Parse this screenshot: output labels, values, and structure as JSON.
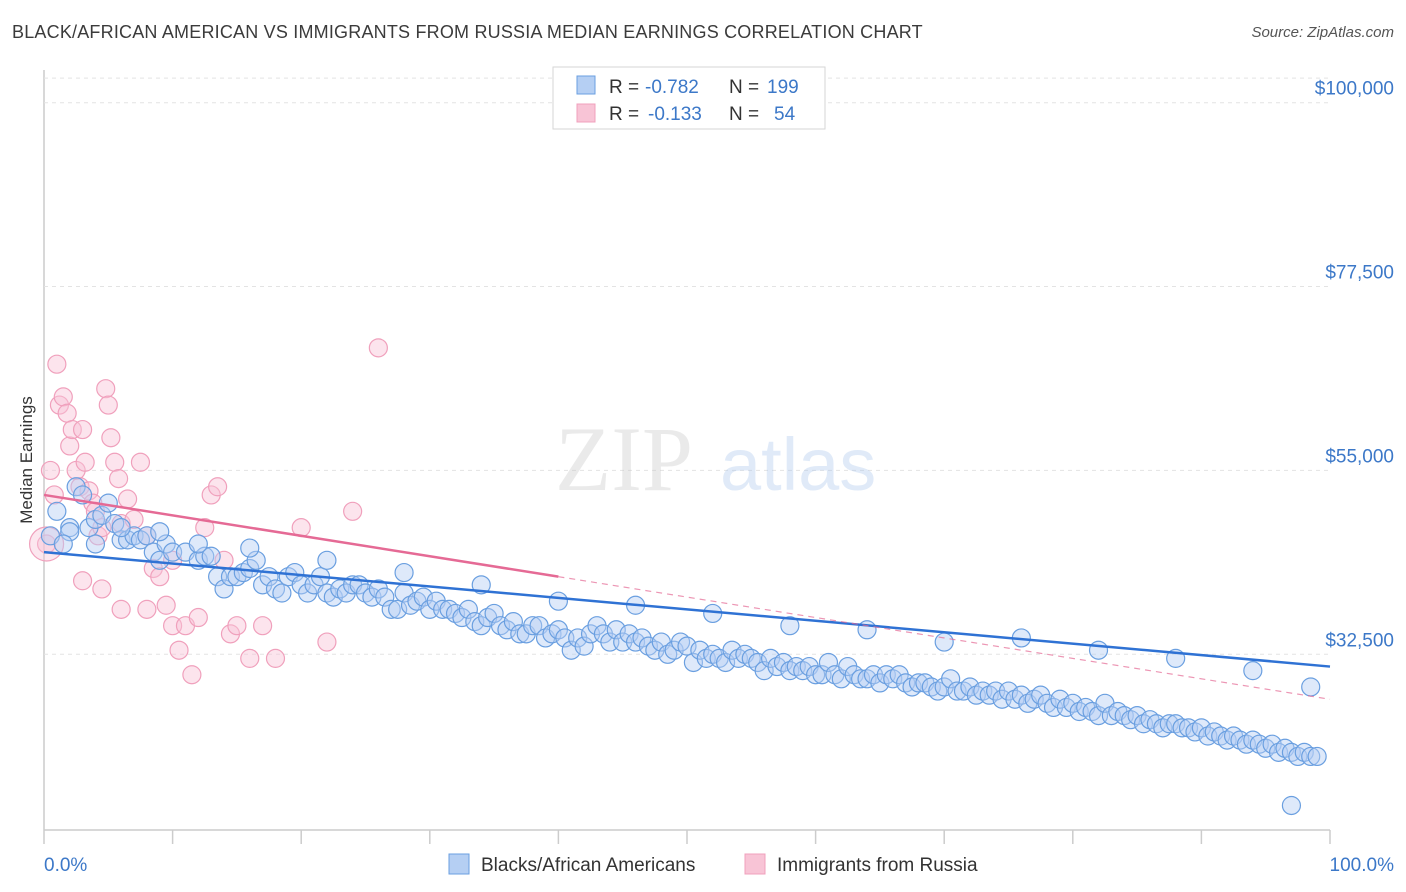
{
  "title": "BLACK/AFRICAN AMERICAN VS IMMIGRANTS FROM RUSSIA MEDIAN EARNINGS CORRELATION CHART",
  "source": "Source: ZipAtlas.com",
  "watermark": {
    "zip": "ZIP",
    "atlas": "atlas"
  },
  "stats": [
    {
      "r_label": "R =",
      "r_value": "-0.782",
      "n_label": "N =",
      "n_value": "199"
    },
    {
      "r_label": "R =",
      "r_value": "-0.133",
      "n_label": "N =",
      "n_value": "54"
    }
  ],
  "chart_data": {
    "type": "scatter",
    "title": "BLACK/AFRICAN AMERICAN VS IMMIGRANTS FROM RUSSIA MEDIAN EARNINGS CORRELATION CHART",
    "xlabel": "",
    "ylabel": "Median Earnings",
    "xlim": [
      0,
      100
    ],
    "ylim": [
      11000,
      104000
    ],
    "x_tick_labels": [
      "0.0%",
      "100.0%"
    ],
    "y_ticks": [
      32500,
      55000,
      77500,
      100000
    ],
    "y_tick_labels": [
      "$32,500",
      "$55,000",
      "$77,500",
      "$100,000"
    ],
    "grid": true,
    "legend_position": "bottom",
    "colors": {
      "blue": "#6a9fe0",
      "blue_line": "#2f72d4",
      "pink": "#f0a0bc",
      "pink_line": "#e56a95"
    },
    "series": [
      {
        "name": "Blacks/African Americans",
        "r": -0.782,
        "n": 199,
        "trend": {
          "x": [
            0,
            100
          ],
          "y": [
            45000,
            31000
          ]
        },
        "points": [
          [
            0.5,
            47
          ],
          [
            1,
            50
          ],
          [
            2,
            48
          ],
          [
            2.5,
            53
          ],
          [
            3,
            52
          ],
          [
            3.5,
            48
          ],
          [
            4,
            49
          ],
          [
            4.5,
            49.5
          ],
          [
            5,
            51
          ],
          [
            5.5,
            48.5
          ],
          [
            6,
            46.5
          ],
          [
            6.5,
            46.5
          ],
          [
            7,
            47
          ],
          [
            7.5,
            46.5
          ],
          [
            8,
            47
          ],
          [
            8.5,
            45
          ],
          [
            9,
            44
          ],
          [
            9.5,
            46
          ],
          [
            10,
            45
          ],
          [
            11,
            45
          ],
          [
            12,
            44
          ],
          [
            12.5,
            44.5
          ],
          [
            13,
            44.5
          ],
          [
            13.5,
            42
          ],
          [
            14,
            40.5
          ],
          [
            14.5,
            42
          ],
          [
            15,
            42
          ],
          [
            15.5,
            42.5
          ],
          [
            16,
            43
          ],
          [
            16.5,
            44
          ],
          [
            17,
            41
          ],
          [
            17.5,
            42
          ],
          [
            18,
            40.5
          ],
          [
            18.5,
            40
          ],
          [
            19,
            42
          ],
          [
            19.5,
            42.5
          ],
          [
            20,
            41
          ],
          [
            20.5,
            40
          ],
          [
            21,
            41
          ],
          [
            21.5,
            42
          ],
          [
            22,
            40
          ],
          [
            22.5,
            39.5
          ],
          [
            23,
            40.5
          ],
          [
            23.5,
            40
          ],
          [
            24,
            41
          ],
          [
            24.5,
            41
          ],
          [
            25,
            40
          ],
          [
            25.5,
            39.5
          ],
          [
            26,
            40.5
          ],
          [
            26.5,
            39.5
          ],
          [
            27,
            38
          ],
          [
            27.5,
            38
          ],
          [
            28,
            40
          ],
          [
            28.5,
            38.5
          ],
          [
            29,
            39
          ],
          [
            29.5,
            39.5
          ],
          [
            30,
            38
          ],
          [
            30.5,
            39
          ],
          [
            31,
            38
          ],
          [
            31.5,
            38
          ],
          [
            32,
            37.5
          ],
          [
            32.5,
            37
          ],
          [
            33,
            38
          ],
          [
            33.5,
            36.5
          ],
          [
            34,
            36
          ],
          [
            34.5,
            37
          ],
          [
            35,
            37.5
          ],
          [
            35.5,
            36
          ],
          [
            36,
            35.5
          ],
          [
            36.5,
            36.5
          ],
          [
            37,
            35
          ],
          [
            37.5,
            35
          ],
          [
            38,
            36
          ],
          [
            38.5,
            36
          ],
          [
            39,
            34.5
          ],
          [
            39.5,
            35
          ],
          [
            40,
            35.5
          ],
          [
            40.5,
            34.5
          ],
          [
            41,
            33
          ],
          [
            41.5,
            34.5
          ],
          [
            42,
            33.5
          ],
          [
            42.5,
            35
          ],
          [
            43,
            36
          ],
          [
            43.5,
            35
          ],
          [
            44,
            34
          ],
          [
            44.5,
            35.5
          ],
          [
            45,
            34
          ],
          [
            45.5,
            35
          ],
          [
            46,
            34
          ],
          [
            46.5,
            34.5
          ],
          [
            47,
            33.5
          ],
          [
            47.5,
            33
          ],
          [
            48,
            34
          ],
          [
            48.5,
            32.5
          ],
          [
            49,
            33
          ],
          [
            49.5,
            34
          ],
          [
            50,
            33.5
          ],
          [
            50.5,
            31.5
          ],
          [
            51,
            33
          ],
          [
            51.5,
            32
          ],
          [
            52,
            32.5
          ],
          [
            52.5,
            32
          ],
          [
            53,
            31.5
          ],
          [
            53.5,
            33
          ],
          [
            54,
            32
          ],
          [
            54.5,
            32.5
          ],
          [
            55,
            32
          ],
          [
            55.5,
            31.5
          ],
          [
            56,
            30.5
          ],
          [
            56.5,
            32
          ],
          [
            57,
            31
          ],
          [
            57.5,
            31.5
          ],
          [
            58,
            30.5
          ],
          [
            58.5,
            31
          ],
          [
            59,
            30.5
          ],
          [
            59.5,
            31
          ],
          [
            60,
            30
          ],
          [
            60.5,
            30
          ],
          [
            61,
            31.5
          ],
          [
            61.5,
            30
          ],
          [
            62,
            29.5
          ],
          [
            62.5,
            31
          ],
          [
            63,
            30
          ],
          [
            63.5,
            29.5
          ],
          [
            64,
            29.5
          ],
          [
            64.5,
            30
          ],
          [
            65,
            29
          ],
          [
            65.5,
            30
          ],
          [
            66,
            29.5
          ],
          [
            66.5,
            30
          ],
          [
            67,
            29
          ],
          [
            67.5,
            28.5
          ],
          [
            68,
            29
          ],
          [
            68.5,
            29
          ],
          [
            69,
            28.5
          ],
          [
            69.5,
            28
          ],
          [
            70,
            28.5
          ],
          [
            70.5,
            29.5
          ],
          [
            71,
            28
          ],
          [
            71.5,
            28
          ],
          [
            72,
            28.5
          ],
          [
            72.5,
            27.5
          ],
          [
            73,
            28
          ],
          [
            73.5,
            27.5
          ],
          [
            74,
            28
          ],
          [
            74.5,
            27
          ],
          [
            75,
            28
          ],
          [
            75.5,
            27
          ],
          [
            76,
            27.5
          ],
          [
            76.5,
            26.5
          ],
          [
            77,
            27
          ],
          [
            77.5,
            27.5
          ],
          [
            78,
            26.5
          ],
          [
            78.5,
            26
          ],
          [
            79,
            27
          ],
          [
            79.5,
            26
          ],
          [
            80,
            26.5
          ],
          [
            80.5,
            25.5
          ],
          [
            81,
            26
          ],
          [
            81.5,
            25.5
          ],
          [
            82,
            25
          ],
          [
            82.5,
            26.5
          ],
          [
            83,
            25
          ],
          [
            83.5,
            25.5
          ],
          [
            84,
            25
          ],
          [
            84.5,
            24.5
          ],
          [
            85,
            25
          ],
          [
            85.5,
            24
          ],
          [
            86,
            24.5
          ],
          [
            86.5,
            24
          ],
          [
            87,
            23.5
          ],
          [
            87.5,
            24
          ],
          [
            88,
            24
          ],
          [
            88.5,
            23.5
          ],
          [
            89,
            23.5
          ],
          [
            89.5,
            23
          ],
          [
            90,
            23.5
          ],
          [
            90.5,
            22.5
          ],
          [
            91,
            23
          ],
          [
            91.5,
            22.5
          ],
          [
            92,
            22
          ],
          [
            92.5,
            22.5
          ],
          [
            93,
            22
          ],
          [
            93.5,
            21.5
          ],
          [
            94,
            22
          ],
          [
            94.5,
            21.5
          ],
          [
            95,
            21
          ],
          [
            95.5,
            21.5
          ],
          [
            96,
            20.5
          ],
          [
            96.5,
            21
          ],
          [
            97,
            20.5
          ],
          [
            97.5,
            20
          ],
          [
            98,
            20.5
          ],
          [
            98.5,
            20
          ],
          [
            99,
            20
          ],
          [
            2,
            47.5
          ],
          [
            1.5,
            46
          ],
          [
            4,
            46
          ],
          [
            6,
            48
          ],
          [
            9,
            47.5
          ],
          [
            12,
            46
          ],
          [
            16,
            45.5
          ],
          [
            22,
            44
          ],
          [
            28,
            42.5
          ],
          [
            34,
            41
          ],
          [
            40,
            39
          ],
          [
            46,
            38.5
          ],
          [
            52,
            37.5
          ],
          [
            58,
            36
          ],
          [
            64,
            35.5
          ],
          [
            70,
            34
          ],
          [
            76,
            34.5
          ],
          [
            82,
            33
          ],
          [
            88,
            32
          ],
          [
            94,
            30.5
          ],
          [
            98.5,
            28.5
          ],
          [
            97,
            14
          ]
        ],
        "points_note": "blue point y values expressed in thousands of dollars"
      },
      {
        "name": "Immigrants from Russia",
        "r": -0.133,
        "n": 54,
        "trend": {
          "x": [
            0,
            40
          ],
          "y": [
            52000,
            42000
          ]
        },
        "points": [
          [
            0.2,
            46
          ],
          [
            0.5,
            55
          ],
          [
            0.8,
            52
          ],
          [
            1,
            68
          ],
          [
            1.2,
            63
          ],
          [
            1.5,
            64
          ],
          [
            1.8,
            62
          ],
          [
            2,
            58
          ],
          [
            2.2,
            60
          ],
          [
            2.5,
            55
          ],
          [
            2.8,
            53
          ],
          [
            3,
            60
          ],
          [
            3.2,
            56
          ],
          [
            3.5,
            52.5
          ],
          [
            3.8,
            51
          ],
          [
            4,
            50
          ],
          [
            4.2,
            47
          ],
          [
            4.5,
            48
          ],
          [
            4.8,
            65
          ],
          [
            5,
            63
          ],
          [
            5.2,
            59
          ],
          [
            5.5,
            56
          ],
          [
            5.8,
            54
          ],
          [
            6,
            48.5
          ],
          [
            6.5,
            51.5
          ],
          [
            7,
            49
          ],
          [
            7.5,
            56
          ],
          [
            8,
            47
          ],
          [
            8.5,
            43
          ],
          [
            9,
            42
          ],
          [
            9.5,
            38.5
          ],
          [
            10,
            36
          ],
          [
            10.5,
            33
          ],
          [
            11,
            36
          ],
          [
            11.5,
            30
          ],
          [
            12,
            37
          ],
          [
            12.5,
            48
          ],
          [
            13,
            52
          ],
          [
            13.5,
            53
          ],
          [
            14,
            44
          ],
          [
            14.5,
            35
          ],
          [
            15,
            36
          ],
          [
            16,
            32
          ],
          [
            17,
            36
          ],
          [
            18,
            32
          ],
          [
            20,
            48
          ],
          [
            22,
            34
          ],
          [
            24,
            50
          ],
          [
            26,
            70
          ],
          [
            3,
            41.5
          ],
          [
            4.5,
            40.5
          ],
          [
            6,
            38
          ],
          [
            8,
            38
          ],
          [
            10,
            44
          ]
        ],
        "points_note": "pink point y values expressed in thousands of dollars"
      }
    ]
  },
  "axis": {
    "x_left_label": "0.0%",
    "x_right_label": "100.0%",
    "y_title": "Median Earnings"
  }
}
